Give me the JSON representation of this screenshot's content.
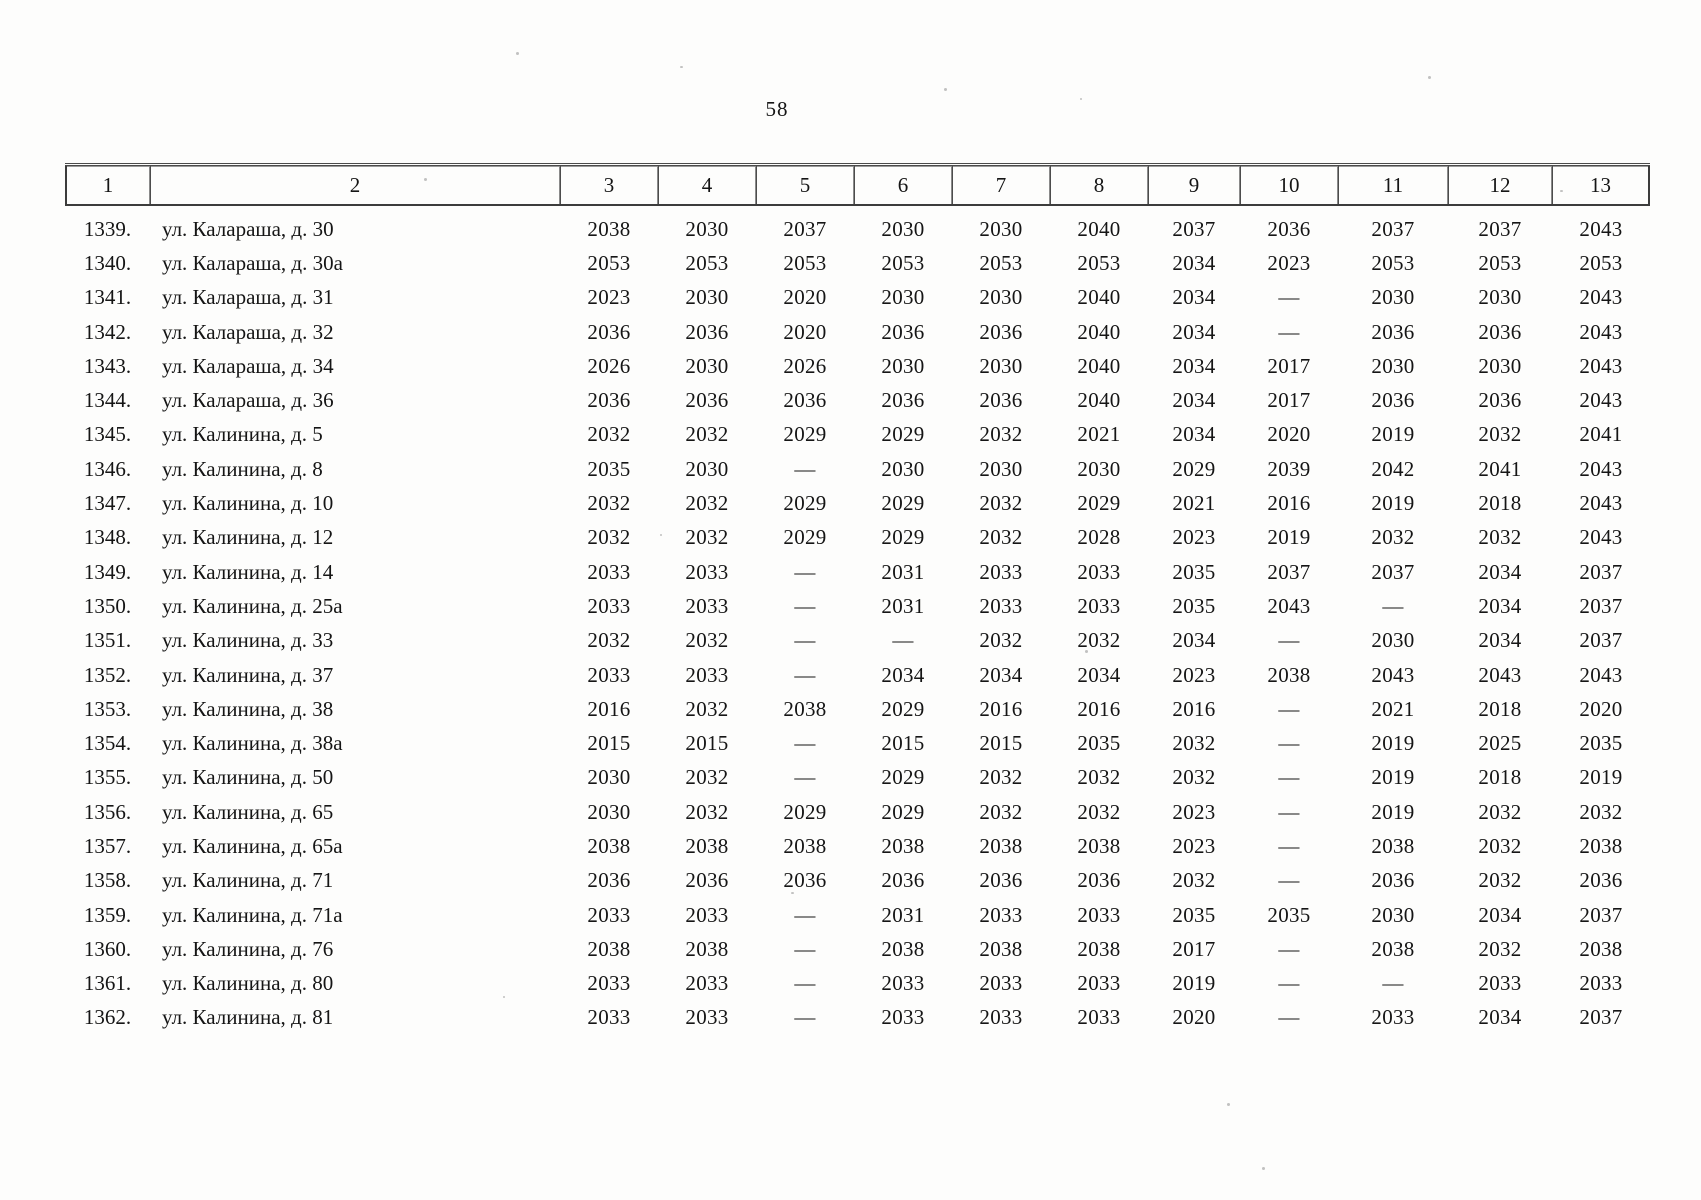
{
  "page": {
    "number": "58"
  },
  "table": {
    "headers": [
      "1",
      "2",
      "3",
      "4",
      "5",
      "6",
      "7",
      "8",
      "9",
      "10",
      "11",
      "12",
      "13"
    ],
    "rows": [
      {
        "num": "1339.",
        "address": "ул. Калараша, д. 30",
        "values": [
          "2038",
          "2030",
          "2037",
          "2030",
          "2030",
          "2040",
          "2037",
          "2036",
          "2037",
          "2037",
          "2043"
        ]
      },
      {
        "num": "1340.",
        "address": "ул. Калараша, д. 30а",
        "values": [
          "2053",
          "2053",
          "2053",
          "2053",
          "2053",
          "2053",
          "2034",
          "2023",
          "2053",
          "2053",
          "2053"
        ]
      },
      {
        "num": "1341.",
        "address": "ул. Калараша, д. 31",
        "values": [
          "2023",
          "2030",
          "2020",
          "2030",
          "2030",
          "2040",
          "2034",
          "—",
          "2030",
          "2030",
          "2043"
        ]
      },
      {
        "num": "1342.",
        "address": "ул. Калараша, д. 32",
        "values": [
          "2036",
          "2036",
          "2020",
          "2036",
          "2036",
          "2040",
          "2034",
          "—",
          "2036",
          "2036",
          "2043"
        ]
      },
      {
        "num": "1343.",
        "address": "ул. Калараша, д. 34",
        "values": [
          "2026",
          "2030",
          "2026",
          "2030",
          "2030",
          "2040",
          "2034",
          "2017",
          "2030",
          "2030",
          "2043"
        ]
      },
      {
        "num": "1344.",
        "address": "ул. Калараша, д. 36",
        "values": [
          "2036",
          "2036",
          "2036",
          "2036",
          "2036",
          "2040",
          "2034",
          "2017",
          "2036",
          "2036",
          "2043"
        ]
      },
      {
        "num": "1345.",
        "address": "ул. Калинина, д. 5",
        "values": [
          "2032",
          "2032",
          "2029",
          "2029",
          "2032",
          "2021",
          "2034",
          "2020",
          "2019",
          "2032",
          "2041"
        ]
      },
      {
        "num": "1346.",
        "address": "ул. Калинина, д. 8",
        "values": [
          "2035",
          "2030",
          "—",
          "2030",
          "2030",
          "2030",
          "2029",
          "2039",
          "2042",
          "2041",
          "2043"
        ]
      },
      {
        "num": "1347.",
        "address": "ул. Калинина, д. 10",
        "values": [
          "2032",
          "2032",
          "2029",
          "2029",
          "2032",
          "2029",
          "2021",
          "2016",
          "2019",
          "2018",
          "2043"
        ]
      },
      {
        "num": "1348.",
        "address": "ул. Калинина, д. 12",
        "values": [
          "2032",
          "2032",
          "2029",
          "2029",
          "2032",
          "2028",
          "2023",
          "2019",
          "2032",
          "2032",
          "2043"
        ]
      },
      {
        "num": "1349.",
        "address": "ул. Калинина, д. 14",
        "values": [
          "2033",
          "2033",
          "—",
          "2031",
          "2033",
          "2033",
          "2035",
          "2037",
          "2037",
          "2034",
          "2037"
        ]
      },
      {
        "num": "1350.",
        "address": "ул. Калинина, д. 25а",
        "values": [
          "2033",
          "2033",
          "—",
          "2031",
          "2033",
          "2033",
          "2035",
          "2043",
          "—",
          "2034",
          "2037"
        ]
      },
      {
        "num": "1351.",
        "address": "ул. Калинина, д. 33",
        "values": [
          "2032",
          "2032",
          "—",
          "—",
          "2032",
          "2032",
          "2034",
          "—",
          "2030",
          "2034",
          "2037"
        ]
      },
      {
        "num": "1352.",
        "address": "ул. Калинина, д. 37",
        "values": [
          "2033",
          "2033",
          "—",
          "2034",
          "2034",
          "2034",
          "2023",
          "2038",
          "2043",
          "2043",
          "2043"
        ]
      },
      {
        "num": "1353.",
        "address": "ул. Калинина, д. 38",
        "values": [
          "2016",
          "2032",
          "2038",
          "2029",
          "2016",
          "2016",
          "2016",
          "—",
          "2021",
          "2018",
          "2020"
        ]
      },
      {
        "num": "1354.",
        "address": "ул. Калинина, д. 38а",
        "values": [
          "2015",
          "2015",
          "—",
          "2015",
          "2015",
          "2035",
          "2032",
          "—",
          "2019",
          "2025",
          "2035"
        ]
      },
      {
        "num": "1355.",
        "address": "ул. Калинина, д. 50",
        "values": [
          "2030",
          "2032",
          "—",
          "2029",
          "2032",
          "2032",
          "2032",
          "—",
          "2019",
          "2018",
          "2019"
        ]
      },
      {
        "num": "1356.",
        "address": "ул. Калинина, д. 65",
        "values": [
          "2030",
          "2032",
          "2029",
          "2029",
          "2032",
          "2032",
          "2023",
          "—",
          "2019",
          "2032",
          "2032"
        ]
      },
      {
        "num": "1357.",
        "address": "ул. Калинина, д. 65а",
        "values": [
          "2038",
          "2038",
          "2038",
          "2038",
          "2038",
          "2038",
          "2023",
          "—",
          "2038",
          "2032",
          "2038"
        ]
      },
      {
        "num": "1358.",
        "address": "ул. Калинина, д. 71",
        "values": [
          "2036",
          "2036",
          "2036",
          "2036",
          "2036",
          "2036",
          "2032",
          "—",
          "2036",
          "2032",
          "2036"
        ]
      },
      {
        "num": "1359.",
        "address": "ул. Калинина, д. 71а",
        "values": [
          "2033",
          "2033",
          "—",
          "2031",
          "2033",
          "2033",
          "2035",
          "2035",
          "2030",
          "2034",
          "2037"
        ]
      },
      {
        "num": "1360.",
        "address": "ул. Калинина, д. 76",
        "values": [
          "2038",
          "2038",
          "—",
          "2038",
          "2038",
          "2038",
          "2017",
          "—",
          "2038",
          "2032",
          "2038"
        ]
      },
      {
        "num": "1361.",
        "address": "ул. Калинина, д. 80",
        "values": [
          "2033",
          "2033",
          "—",
          "2033",
          "2033",
          "2033",
          "2019",
          "—",
          "—",
          "2033",
          "2033"
        ]
      },
      {
        "num": "1362.",
        "address": "ул. Калинина, д. 81",
        "values": [
          "2033",
          "2033",
          "—",
          "2033",
          "2033",
          "2033",
          "2020",
          "—",
          "2033",
          "2034",
          "2037"
        ]
      }
    ]
  }
}
